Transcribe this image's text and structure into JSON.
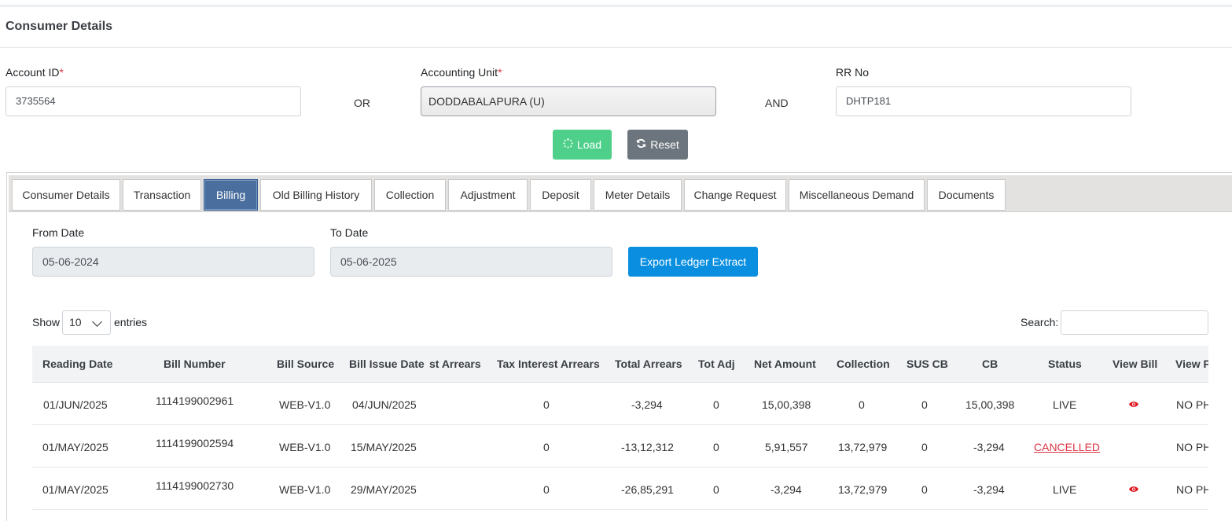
{
  "header": {
    "title": "Consumer Details"
  },
  "form": {
    "account_id_label": "Account ID",
    "account_id_value": "3735564",
    "or_text": "OR",
    "accounting_unit_label": "Accounting Unit",
    "accounting_unit_value": "DODDABALAPURA (U)",
    "and_text": "AND",
    "rr_no_label": "RR No",
    "rr_no_value": "DHTP181",
    "required_mark": "*",
    "load_label": "Load",
    "reset_label": "Reset"
  },
  "tabs": [
    {
      "label": "Consumer Details"
    },
    {
      "label": "Transaction"
    },
    {
      "label": "Billing"
    },
    {
      "label": "Old Billing History"
    },
    {
      "label": "Collection"
    },
    {
      "label": "Adjustment"
    },
    {
      "label": "Deposit"
    },
    {
      "label": "Meter Details"
    },
    {
      "label": "Change Request"
    },
    {
      "label": "Miscellaneous Demand"
    },
    {
      "label": "Documents"
    }
  ],
  "active_tab": "Billing",
  "billing": {
    "from_date_label": "From Date",
    "from_date_value": "05-06-2024",
    "to_date_label": "To Date",
    "to_date_value": "05-06-2025",
    "export_label": "Export Ledger Extract",
    "show_label": "Show",
    "entries_value": "10",
    "entries_label": "entries",
    "search_label": "Search:"
  },
  "table": {
    "columns": [
      "Reading Date",
      "Bill Number",
      "Bill Source",
      "Bill Issue Date",
      "st Arrears",
      "Tax Interest Arrears",
      "Total Arrears",
      "Tot Adj",
      "Net Amount",
      "Collection",
      "SUS CB",
      "CB",
      "Status",
      "View Bill",
      "View P"
    ],
    "rows": [
      {
        "c": [
          "01/JUN/2025",
          "1114199002961",
          "WEB-V1.0",
          "04/JUN/2025",
          "",
          "0",
          "-3,294",
          "0",
          "15,00,398",
          "0",
          "0",
          "15,00,398",
          "LIVE",
          "",
          "NO PH"
        ],
        "has_bill": true,
        "cancelled": false
      },
      {
        "c": [
          "01/MAY/2025",
          "1114199002594",
          "WEB-V1.0",
          "15/MAY/2025",
          "",
          "0",
          "-13,12,312",
          "0",
          "5,91,557",
          "13,72,979",
          "0",
          "-3,294",
          "CANCELLED",
          "",
          "NO PH"
        ],
        "has_bill": false,
        "cancelled": true
      },
      {
        "c": [
          "01/MAY/2025",
          "1114199002730",
          "WEB-V1.0",
          "29/MAY/2025",
          "",
          "0",
          "-26,85,291",
          "0",
          "-3,294",
          "13,72,979",
          "0",
          "-3,294",
          "LIVE",
          "",
          "NO PH"
        ],
        "has_bill": true,
        "cancelled": false
      }
    ]
  },
  "colors": {
    "accent_tab": "#4a6f9e",
    "load": "#4fd08a",
    "reset": "#6c757d",
    "export": "#0a8fe0",
    "cancelled": "#dc3545",
    "eye": "#e0141e"
  },
  "icons": {
    "load": "spinner-icon",
    "reset": "refresh-icon",
    "view_bill": "eye-icon",
    "entries": "chevron-down-icon"
  }
}
